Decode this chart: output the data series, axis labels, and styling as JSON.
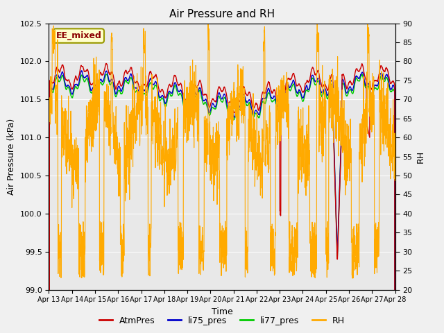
{
  "title": "Air Pressure and RH",
  "xlabel": "Time",
  "ylabel_left": "Air Pressure (kPa)",
  "ylabel_right": "RH",
  "ylim_left": [
    99.0,
    102.5
  ],
  "ylim_right": [
    20,
    90
  ],
  "yticks_left": [
    99.0,
    99.5,
    100.0,
    100.5,
    101.0,
    101.5,
    102.0,
    102.5
  ],
  "yticks_right": [
    20,
    25,
    30,
    35,
    40,
    45,
    50,
    55,
    60,
    65,
    70,
    75,
    80,
    85,
    90
  ],
  "background_color": "#f0f0f0",
  "plot_bg_color": "#e8e8e8",
  "line_colors": {
    "AtmPres": "#cc0000",
    "li75_pres": "#0000cc",
    "li77_pres": "#00cc00",
    "RH": "#ffaa00"
  },
  "annotation_text": "EE_mixed",
  "x_tick_labels": [
    "Apr 13",
    "Apr 14",
    "Apr 15",
    "Apr 16",
    "Apr 17",
    "Apr 18",
    "Apr 19",
    "Apr 20",
    "Apr 21",
    "Apr 22",
    "Apr 23",
    "Apr 24",
    "Apr 25",
    "Apr 26",
    "Apr 27",
    "Apr 28"
  ],
  "grid_color": "#ffffff",
  "figsize": [
    6.4,
    4.8
  ],
  "dpi": 100
}
